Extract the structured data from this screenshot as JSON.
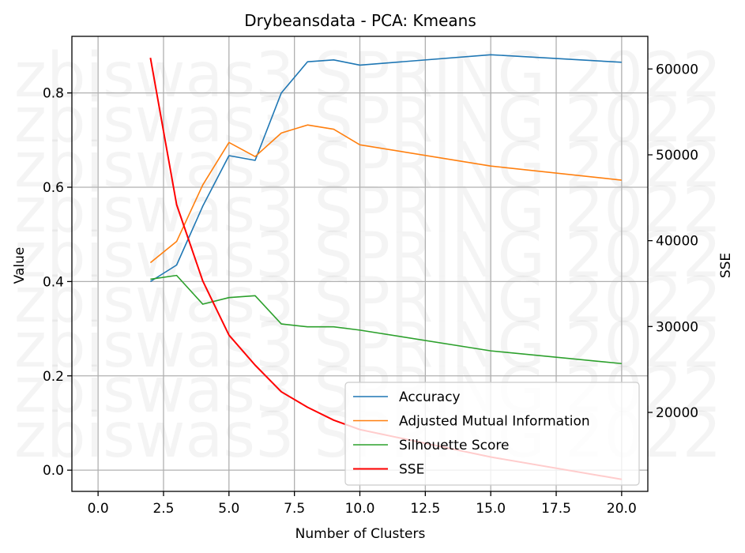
{
  "chart_data": {
    "type": "line",
    "title": "Drybeansdata - PCA: Kmeans",
    "xlabel": "Number of Clusters",
    "ylabel": "Value",
    "y2label": "SSE",
    "xlim": [
      -1.0,
      21.0
    ],
    "ylim": [
      -0.045,
      0.92
    ],
    "y2lim": [
      10800,
      63800
    ],
    "x_ticks": [
      0.0,
      2.5,
      5.0,
      7.5,
      10.0,
      12.5,
      15.0,
      17.5,
      20.0
    ],
    "x_tick_labels": [
      "0.0",
      "2.5",
      "5.0",
      "7.5",
      "10.0",
      "12.5",
      "15.0",
      "17.5",
      "20.0"
    ],
    "y_ticks": [
      0.0,
      0.2,
      0.4,
      0.6,
      0.8
    ],
    "y_tick_labels": [
      "0.0",
      "0.2",
      "0.4",
      "0.6",
      "0.8"
    ],
    "y2_ticks": [
      20000,
      30000,
      40000,
      50000,
      60000
    ],
    "y2_tick_labels": [
      "20000",
      "30000",
      "40000",
      "50000",
      "60000"
    ],
    "grid": true,
    "legend_position": "lower-right",
    "watermark_text": "zbiswas3 SPRING 2022",
    "x": [
      2,
      3,
      4,
      5,
      6,
      7,
      8,
      9,
      10,
      15,
      20
    ],
    "series": [
      {
        "name": "Accuracy",
        "axis": "left",
        "color": "#1f77b4",
        "values": [
          0.4,
          0.435,
          0.56,
          0.667,
          0.657,
          0.8,
          0.866,
          0.87,
          0.859,
          0.881,
          0.865
        ]
      },
      {
        "name": "Adjusted Mutual Information",
        "axis": "left",
        "color": "#ff7f0e",
        "values": [
          0.44,
          0.485,
          0.605,
          0.695,
          0.665,
          0.715,
          0.732,
          0.723,
          0.69,
          0.645,
          0.615
        ]
      },
      {
        "name": "Silhouette Score",
        "axis": "left",
        "color": "#2ca02c",
        "values": [
          0.405,
          0.413,
          0.352,
          0.366,
          0.37,
          0.31,
          0.304,
          0.304,
          0.297,
          0.253,
          0.226
        ]
      },
      {
        "name": "SSE",
        "axis": "right",
        "color": "#ff0000",
        "values": [
          61300,
          44200,
          35300,
          29000,
          25500,
          22400,
          20600,
          19100,
          18000,
          14800,
          12200
        ]
      }
    ]
  }
}
